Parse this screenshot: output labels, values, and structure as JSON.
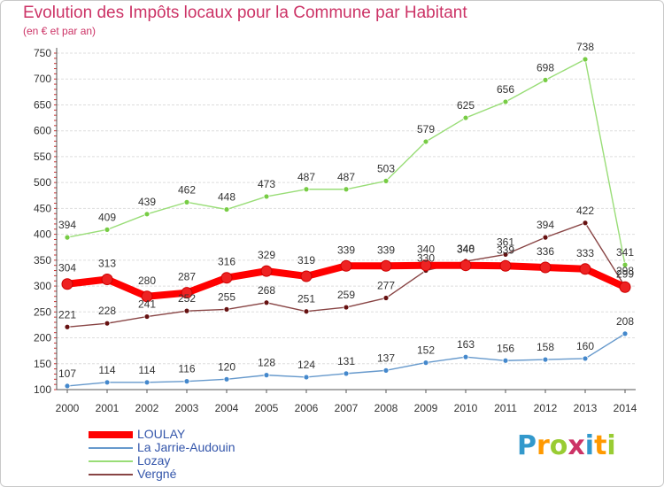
{
  "header": {
    "title": "Evolution des Impôts locaux pour la Commune par Habitant",
    "subtitle": "(en € et par an)"
  },
  "brand": {
    "text": "Proxiti",
    "letters": [
      {
        "ch": "P",
        "color": "#3399cc"
      },
      {
        "ch": "r",
        "color": "#ff9900"
      },
      {
        "ch": "o",
        "color": "#99cc33"
      },
      {
        "ch": "x",
        "color": "#cc3366"
      },
      {
        "ch": "i",
        "color": "#3399cc"
      },
      {
        "ch": "t",
        "color": "#ff9900"
      },
      {
        "ch": "i",
        "color": "#99cc33"
      }
    ]
  },
  "chart_data": {
    "type": "line",
    "title": "Evolution des Impôts locaux pour la Commune par Habitant",
    "subtitle": "(en € et par an)",
    "x": [
      "2000",
      "2001",
      "2002",
      "2003",
      "2004",
      "2005",
      "2006",
      "2007",
      "2008",
      "2009",
      "2010",
      "2011",
      "2012",
      "2013",
      "2014"
    ],
    "ylim": [
      100,
      750
    ],
    "yticks": [
      "100",
      "150",
      "200",
      "250",
      "300",
      "350",
      "400",
      "450",
      "500",
      "550",
      "600",
      "650",
      "700",
      "750"
    ],
    "grid": "horizontal",
    "legend_position": "bottom-left",
    "series": [
      {
        "name": "LOULAY",
        "color": "#ff0000",
        "marker": "#ee2222",
        "values": [
          304,
          313,
          280,
          287,
          316,
          329,
          319,
          339,
          339,
          340,
          340,
          339,
          336,
          333,
          298
        ],
        "labels": [
          "304",
          "313",
          "280",
          "287",
          "316",
          "329",
          "319",
          "339",
          "339",
          "340",
          "340",
          "339",
          "336",
          "333",
          "298"
        ]
      },
      {
        "name": "La Jarrie-Audouin",
        "color": "#6699cc",
        "marker": "#4488cc",
        "values": [
          107,
          114,
          114,
          116,
          120,
          128,
          124,
          131,
          137,
          152,
          163,
          156,
          158,
          160,
          208
        ],
        "labels": [
          "107",
          "114",
          "114",
          "116",
          "120",
          "128",
          "124",
          "131",
          "137",
          "152",
          "163",
          "156",
          "158",
          "160",
          "208"
        ]
      },
      {
        "name": "Lozay",
        "color": "#99dd77",
        "marker": "#77cc44",
        "values": [
          394,
          409,
          439,
          462,
          448,
          473,
          487,
          487,
          503,
          579,
          625,
          656,
          698,
          738,
          341
        ],
        "labels": [
          "394",
          "409",
          "439",
          "462",
          "448",
          "473",
          "487",
          "487",
          "503",
          "579",
          "625",
          "656",
          "698",
          "738",
          "341"
        ]
      },
      {
        "name": "Vergné",
        "color": "#884444",
        "marker": "#661111",
        "values": [
          221,
          228,
          241,
          252,
          255,
          268,
          251,
          259,
          277,
          330,
          348,
          361,
          394,
          422,
          299
        ],
        "labels": [
          "221",
          "228",
          "241",
          "252",
          "255",
          "268",
          "251",
          "259",
          "277",
          "330",
          "348",
          "361",
          "394",
          "422",
          "299"
        ]
      }
    ]
  }
}
